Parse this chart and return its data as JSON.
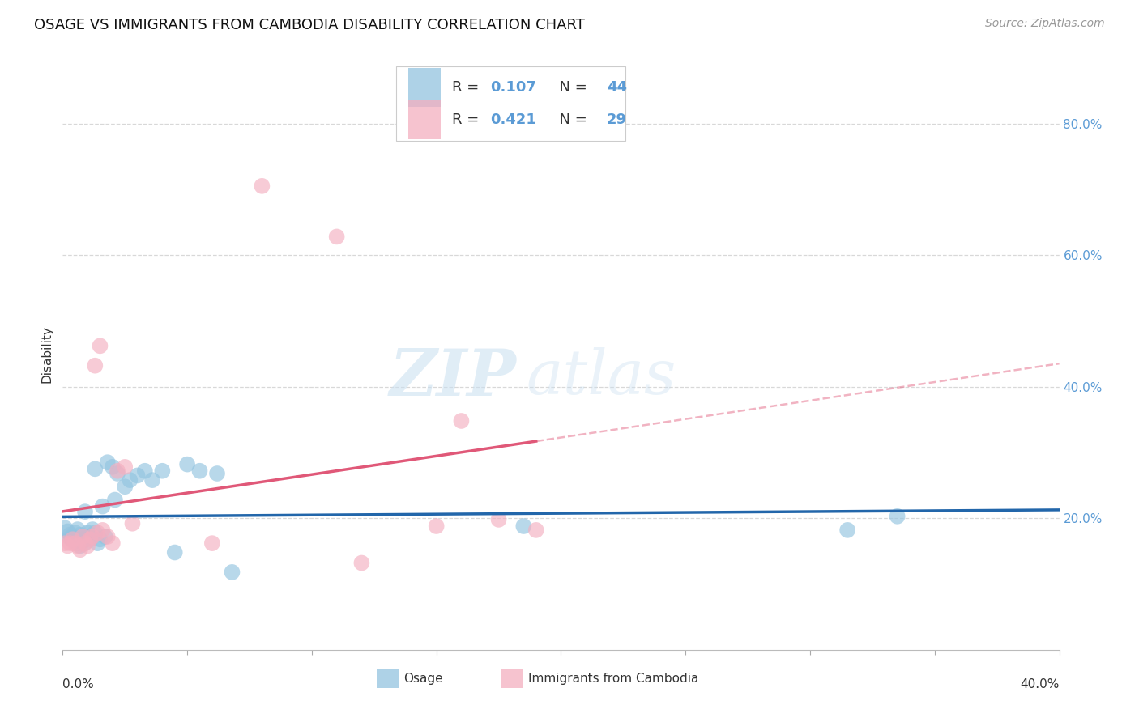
{
  "title": "OSAGE VS IMMIGRANTS FROM CAMBODIA DISABILITY CORRELATION CHART",
  "source": "Source: ZipAtlas.com",
  "ylabel": "Disability",
  "xlim": [
    0.0,
    0.4
  ],
  "ylim": [
    0.0,
    0.9
  ],
  "yticks_right": [
    0.2,
    0.4,
    0.6,
    0.8
  ],
  "ytick_labels_right": [
    "20.0%",
    "40.0%",
    "60.0%",
    "80.0%"
  ],
  "xticks": [
    0.0,
    0.05,
    0.1,
    0.15,
    0.2,
    0.25,
    0.3,
    0.35,
    0.4
  ],
  "background_color": "#ffffff",
  "grid_color": "#d8d8d8",
  "blue_color": "#93c4e0",
  "pink_color": "#f4afc0",
  "blue_line_color": "#2266aa",
  "pink_line_color": "#e05878",
  "legend_R_blue": "0.107",
  "legend_N_blue": "44",
  "legend_R_pink": "0.421",
  "legend_N_pink": "29",
  "osage_x": [
    0.001,
    0.002,
    0.003,
    0.003,
    0.004,
    0.004,
    0.005,
    0.005,
    0.006,
    0.006,
    0.007,
    0.007,
    0.008,
    0.008,
    0.009,
    0.009,
    0.01,
    0.01,
    0.011,
    0.012,
    0.013,
    0.013,
    0.014,
    0.015,
    0.016,
    0.017,
    0.018,
    0.02,
    0.021,
    0.022,
    0.025,
    0.027,
    0.03,
    0.033,
    0.036,
    0.04,
    0.045,
    0.05,
    0.055,
    0.062,
    0.068,
    0.185,
    0.315,
    0.335
  ],
  "osage_y": [
    0.185,
    0.18,
    0.175,
    0.17,
    0.168,
    0.172,
    0.165,
    0.178,
    0.183,
    0.162,
    0.158,
    0.175,
    0.168,
    0.165,
    0.163,
    0.21,
    0.178,
    0.172,
    0.168,
    0.183,
    0.275,
    0.178,
    0.162,
    0.168,
    0.218,
    0.172,
    0.285,
    0.278,
    0.228,
    0.268,
    0.248,
    0.258,
    0.265,
    0.272,
    0.258,
    0.272,
    0.148,
    0.282,
    0.272,
    0.268,
    0.118,
    0.188,
    0.182,
    0.203
  ],
  "cambodia_x": [
    0.001,
    0.002,
    0.003,
    0.004,
    0.005,
    0.006,
    0.007,
    0.008,
    0.009,
    0.01,
    0.011,
    0.012,
    0.013,
    0.014,
    0.015,
    0.016,
    0.018,
    0.02,
    0.022,
    0.025,
    0.028,
    0.06,
    0.08,
    0.11,
    0.12,
    0.15,
    0.16,
    0.175,
    0.19
  ],
  "cambodia_y": [
    0.162,
    0.158,
    0.162,
    0.168,
    0.162,
    0.158,
    0.152,
    0.172,
    0.162,
    0.158,
    0.168,
    0.172,
    0.432,
    0.178,
    0.462,
    0.182,
    0.172,
    0.162,
    0.272,
    0.278,
    0.192,
    0.162,
    0.705,
    0.628,
    0.132,
    0.188,
    0.348,
    0.198,
    0.182
  ]
}
